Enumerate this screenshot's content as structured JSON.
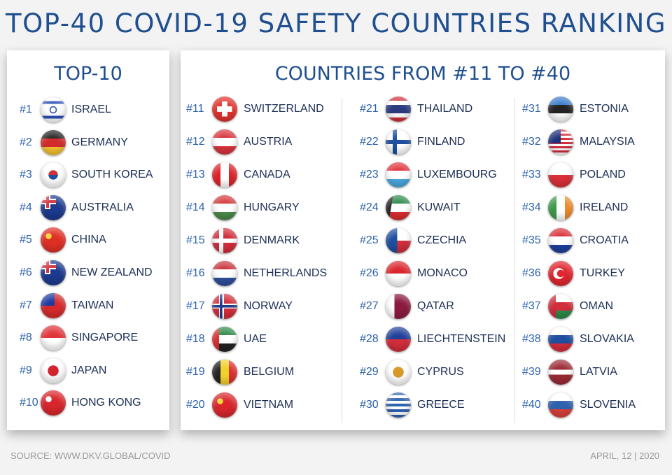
{
  "title": "TOP-40 COVID-19 SAFETY COUNTRIES RANKING",
  "top10": {
    "heading": "TOP-10",
    "items": [
      {
        "rank": "#1",
        "name": "ISRAEL",
        "flag": [
          "#ffffff",
          "#2a4fb5"
        ],
        "flag_type": "israel"
      },
      {
        "rank": "#2",
        "name": "GERMANY",
        "flag": [
          "#222222",
          "#d22b2b",
          "#f2c230"
        ],
        "flag_type": "h"
      },
      {
        "rank": "#3",
        "name": "SOUTH KOREA",
        "flag": [
          "#ffffff",
          "#d32f3a",
          "#1f4ea0"
        ],
        "flag_type": "korea"
      },
      {
        "rank": "#4",
        "name": "AUSTRALIA",
        "flag": [
          "#1c3a8f",
          "#d32f3a"
        ],
        "flag_type": "ensign"
      },
      {
        "rank": "#5",
        "name": "CHINA",
        "flag": [
          "#e03025",
          "#f8d33a"
        ],
        "flag_type": "solid"
      },
      {
        "rank": "#6",
        "name": "NEW ZEALAND",
        "flag": [
          "#1c3a8f",
          "#d32f3a"
        ],
        "flag_type": "ensign"
      },
      {
        "rank": "#7",
        "name": "TAIWAN",
        "flag": [
          "#d72b2b",
          "#1c3a9f"
        ],
        "flag_type": "canton"
      },
      {
        "rank": "#8",
        "name": "SINGAPORE",
        "flag": [
          "#e0343a",
          "#ffffff"
        ],
        "flag_type": "h"
      },
      {
        "rank": "#9",
        "name": "JAPAN",
        "flag": [
          "#ffffff",
          "#d3232f"
        ],
        "flag_type": "disc"
      },
      {
        "rank": "#10",
        "name": "HONG KONG",
        "flag": [
          "#d9262c",
          "#ffffff"
        ],
        "flag_type": "solid"
      }
    ]
  },
  "others": {
    "heading": "COUNTRIES FROM #11 TO #40",
    "columns": [
      [
        {
          "rank": "#11",
          "name": "SWITZERLAND",
          "flag": [
            "#e3312c",
            "#ffffff"
          ],
          "flag_type": "cross"
        },
        {
          "rank": "#12",
          "name": "AUSTRIA",
          "flag": [
            "#d9343c",
            "#ffffff",
            "#d9343c"
          ],
          "flag_type": "h"
        },
        {
          "rank": "#13",
          "name": "CANADA",
          "flag": [
            "#e0232b",
            "#ffffff",
            "#e0232b"
          ],
          "flag_type": "v"
        },
        {
          "rank": "#14",
          "name": "HUNGARY",
          "flag": [
            "#d23a3a",
            "#ffffff",
            "#4b8a4a"
          ],
          "flag_type": "h"
        },
        {
          "rank": "#15",
          "name": "DENMARK",
          "flag": [
            "#d22e3b",
            "#ffffff"
          ],
          "flag_type": "nordic"
        },
        {
          "rank": "#16",
          "name": "NETHERLANDS",
          "flag": [
            "#c9333b",
            "#ffffff",
            "#2f4e9a"
          ],
          "flag_type": "h"
        },
        {
          "rank": "#17",
          "name": "NORWAY",
          "flag": [
            "#d22e3b",
            "#1e3a8a"
          ],
          "flag_type": "nordic2"
        },
        {
          "rank": "#18",
          "name": "UAE",
          "flag": [
            "#2d8a4a",
            "#ffffff",
            "#222222",
            "#d92e30"
          ],
          "flag_type": "uae"
        },
        {
          "rank": "#19",
          "name": "BELGIUM",
          "flag": [
            "#222222",
            "#f2d12b",
            "#e0302f"
          ],
          "flag_type": "v"
        },
        {
          "rank": "#20",
          "name": "VIETNAM",
          "flag": [
            "#d9262c",
            "#f8d33a"
          ],
          "flag_type": "solid"
        }
      ],
      [
        {
          "rank": "#21",
          "name": "THAILAND",
          "flag": [
            "#d22e3b",
            "#ffffff",
            "#2c3a80",
            "#ffffff",
            "#d22e3b"
          ],
          "flag_type": "h5"
        },
        {
          "rank": "#22",
          "name": "FINLAND",
          "flag": [
            "#ffffff",
            "#1e4fa0"
          ],
          "flag_type": "nordic"
        },
        {
          "rank": "#23",
          "name": "LUXEMBOURG",
          "flag": [
            "#e0343a",
            "#ffffff",
            "#4aa8de"
          ],
          "flag_type": "h"
        },
        {
          "rank": "#24",
          "name": "KUWAIT",
          "flag": [
            "#2d8a4a",
            "#ffffff",
            "#d92e30",
            "#222222"
          ],
          "flag_type": "kuwait"
        },
        {
          "rank": "#25",
          "name": "CZECHIA",
          "flag": [
            "#ffffff",
            "#d22e3b",
            "#1e4fa0"
          ],
          "flag_type": "czech"
        },
        {
          "rank": "#26",
          "name": "MONACO",
          "flag": [
            "#d9262c",
            "#ffffff"
          ],
          "flag_type": "h"
        },
        {
          "rank": "#27",
          "name": "QATAR",
          "flag": [
            "#ffffff",
            "#8a1a3e"
          ],
          "flag_type": "qatar"
        },
        {
          "rank": "#28",
          "name": "LIECHTENSTEIN",
          "flag": [
            "#1e3f9a",
            "#d22e3b"
          ],
          "flag_type": "h"
        },
        {
          "rank": "#29",
          "name": "CYPRUS",
          "flag": [
            "#ffffff",
            "#d79a2a"
          ],
          "flag_type": "disc"
        },
        {
          "rank": "#30",
          "name": "GREECE",
          "flag": [
            "#2f62ae",
            "#ffffff"
          ],
          "flag_type": "greece"
        }
      ],
      [
        {
          "rank": "#31",
          "name": "ESTONIA",
          "flag": [
            "#3a7cc8",
            "#222222",
            "#ffffff"
          ],
          "flag_type": "h"
        },
        {
          "rank": "#32",
          "name": "MALAYSIA",
          "flag": [
            "#d22e3b",
            "#1c2f7a"
          ],
          "flag_type": "malaysia"
        },
        {
          "rank": "#33",
          "name": "POLAND",
          "flag": [
            "#ffffff",
            "#d9303a"
          ],
          "flag_type": "h"
        },
        {
          "rank": "#34",
          "name": "IRELAND",
          "flag": [
            "#3d9a4a",
            "#ffffff",
            "#f08a2a"
          ],
          "flag_type": "v"
        },
        {
          "rank": "#35",
          "name": "CROATIA",
          "flag": [
            "#d9303a",
            "#ffffff",
            "#1f3f9a"
          ],
          "flag_type": "h"
        },
        {
          "rank": "#36",
          "name": "TURKEY",
          "flag": [
            "#e0262e",
            "#ffffff"
          ],
          "flag_type": "turkey"
        },
        {
          "rank": "#37",
          "name": "OMAN",
          "flag": [
            "#d22e3b",
            "#ffffff",
            "#2d8a4a"
          ],
          "flag_type": "oman"
        },
        {
          "rank": "#38",
          "name": "SLOVAKIA",
          "flag": [
            "#ffffff",
            "#1e4fa0",
            "#d22e3b"
          ],
          "flag_type": "h"
        },
        {
          "rank": "#39",
          "name": "LATVIA",
          "flag": [
            "#9b2a35",
            "#ffffff",
            "#9b2a35"
          ],
          "flag_type": "latvia"
        },
        {
          "rank": "#40",
          "name": "SLOVENIA",
          "flag": [
            "#ffffff",
            "#2f62ae",
            "#d9403a"
          ],
          "flag_type": "h"
        }
      ]
    ]
  },
  "footer": {
    "source": "SOURCE: WWW.DKV.GLOBAL/COVID",
    "date": "APRIL, 12 | 2020"
  }
}
